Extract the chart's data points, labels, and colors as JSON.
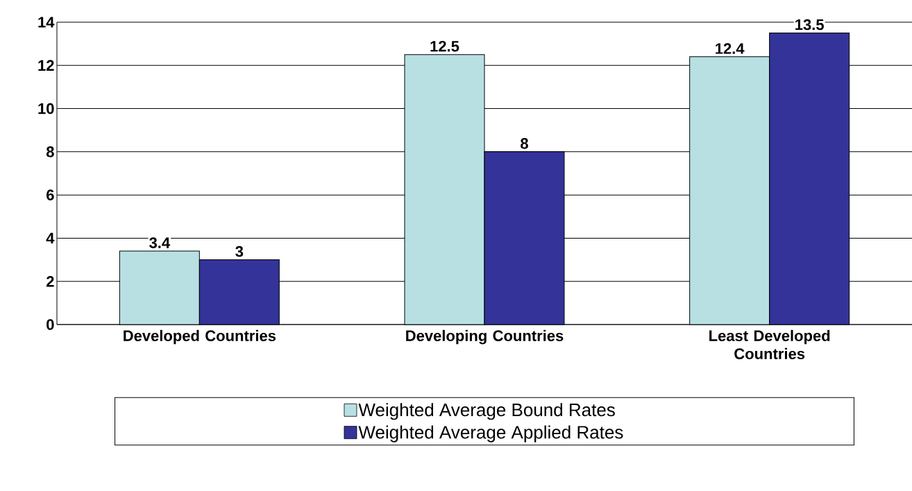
{
  "chart_data": {
    "type": "bar",
    "categories": [
      "Developed Countries",
      "Developing Countries",
      "Least Developed Countries"
    ],
    "series": [
      {
        "name": "Weighted Average Bound Rates",
        "color": "#b8e0e3",
        "values": [
          3.4,
          12.5,
          12.4
        ]
      },
      {
        "name": "Weighted Average Applied Rates",
        "color": "#333399",
        "values": [
          3,
          8,
          13.5
        ]
      }
    ],
    "ylim": [
      0,
      14
    ],
    "yticks": [
      0,
      2,
      4,
      6,
      8,
      10,
      12,
      14
    ],
    "grid": "y",
    "data_labels": true,
    "legend": "bottom"
  }
}
